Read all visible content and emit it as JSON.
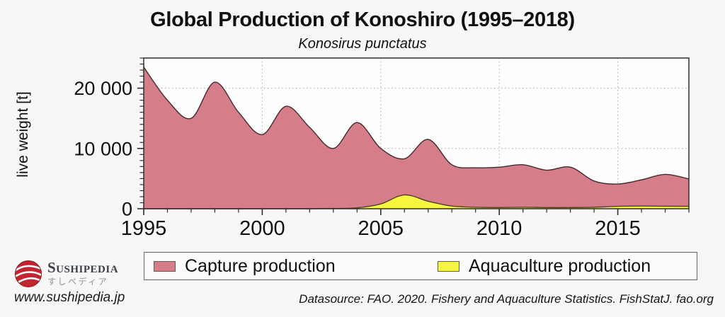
{
  "chart_data": {
    "type": "area",
    "title": "Global Production of Konoshiro (1995–2018)",
    "subtitle": "Konosirus punctatus",
    "ylabel": "live weight [t]",
    "x_years": [
      1995,
      1996,
      1997,
      1998,
      1999,
      2000,
      2001,
      2002,
      2003,
      2004,
      2005,
      2006,
      2007,
      2008,
      2009,
      2010,
      2011,
      2012,
      2013,
      2014,
      2015,
      2016,
      2017,
      2018
    ],
    "series": [
      {
        "id": "capture",
        "name": "Capture production",
        "color": "#d67d8a",
        "line_color": "#472830",
        "values": [
          23500,
          18000,
          15000,
          21000,
          16000,
          12300,
          17000,
          13500,
          10000,
          14300,
          10000,
          8300,
          11500,
          7300,
          6800,
          6900,
          7300,
          6400,
          6900,
          4600,
          4100,
          4800,
          5700,
          4950
        ]
      },
      {
        "id": "aquaculture",
        "name": "Aquaculture production",
        "color": "#f6f53f",
        "line_color": "#4a4420",
        "values": [
          0,
          0,
          0,
          0,
          0,
          0,
          0,
          0,
          50,
          150,
          800,
          2300,
          1250,
          450,
          250,
          200,
          250,
          200,
          200,
          250,
          400,
          450,
          420,
          400
        ]
      }
    ],
    "xlim": [
      1995,
      2018
    ],
    "ylim": [
      0,
      25000
    ],
    "xticks_major": [
      1995,
      2000,
      2005,
      2010,
      2015
    ],
    "xtick_labels": [
      "1995",
      "2000",
      "2005",
      "2010",
      "2015"
    ],
    "yticks_major": [
      0,
      10000,
      20000
    ],
    "ytick_labels": [
      "0",
      "10 000",
      "20 000"
    ],
    "x_minor_step": 1,
    "y_minor_step": 1000,
    "grid": {
      "style": "dotted",
      "x_at": [
        2000,
        2005,
        2010,
        2015
      ],
      "y_at": [
        10000,
        20000
      ]
    },
    "legend_position": "bottom"
  },
  "colors": {
    "page_background": "#f7f7f7",
    "plot_background": "#fdfdfd",
    "frame": "#2e2e2e",
    "gridline": "#a8a8a8"
  },
  "footer": {
    "brand": {
      "name": "Sushipedia",
      "name_jp": "すしペディア",
      "logo_color": "#c32430"
    },
    "website": "www.sushipedia.jp",
    "datasource": "Datasource: FAO. 2020. Fishery and Aquaculture Statistics. FishStatJ. fao.org"
  }
}
